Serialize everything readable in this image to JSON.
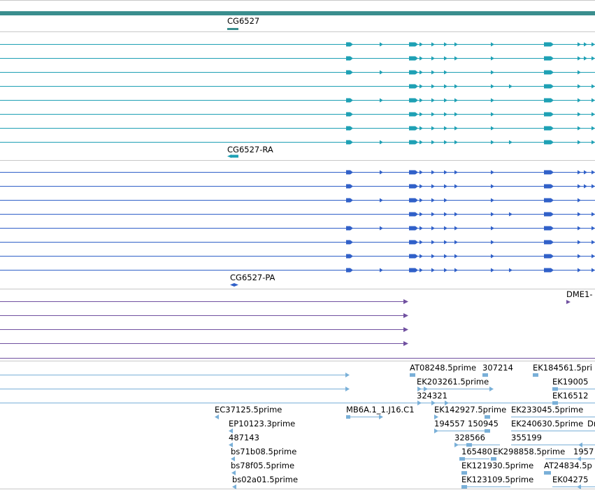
{
  "colors": {
    "gene": "#3a8e8e",
    "mrna": "#1ea0b4",
    "protein": "#3060c8",
    "purple": "#7050a0",
    "est": "#7ab0d8",
    "separator": "#c8c8c8"
  },
  "gene_track": {
    "label": "CG6527"
  },
  "mrna_track": {
    "label": "CG6527-RA"
  },
  "protein_track": {
    "label": "CG6527-PA"
  },
  "purple_track": {
    "label": "DME1-"
  },
  "est_labels": [
    "AT08248.5prime",
    "307214",
    "EK184561.5pri",
    "EK203261.5prime",
    "EK19005",
    "324321",
    "EK16512",
    "EC37125.5prime",
    "MB6A.1_1.J16.C1",
    "EK142927.5prime",
    "EK233045.5prime",
    "EP10123.3prime",
    "194557",
    "150945",
    "EK240630.5prime",
    "Dr",
    "487143",
    "328566",
    "355199",
    "bs71b08.5prime",
    "165480",
    "EK298858.5prime",
    "1957",
    "bs78f05.5prime",
    "EK121930.5prime",
    "AT24834.5p",
    "bs02a01.5prime",
    "EK123109.5prime",
    "EK04275"
  ]
}
